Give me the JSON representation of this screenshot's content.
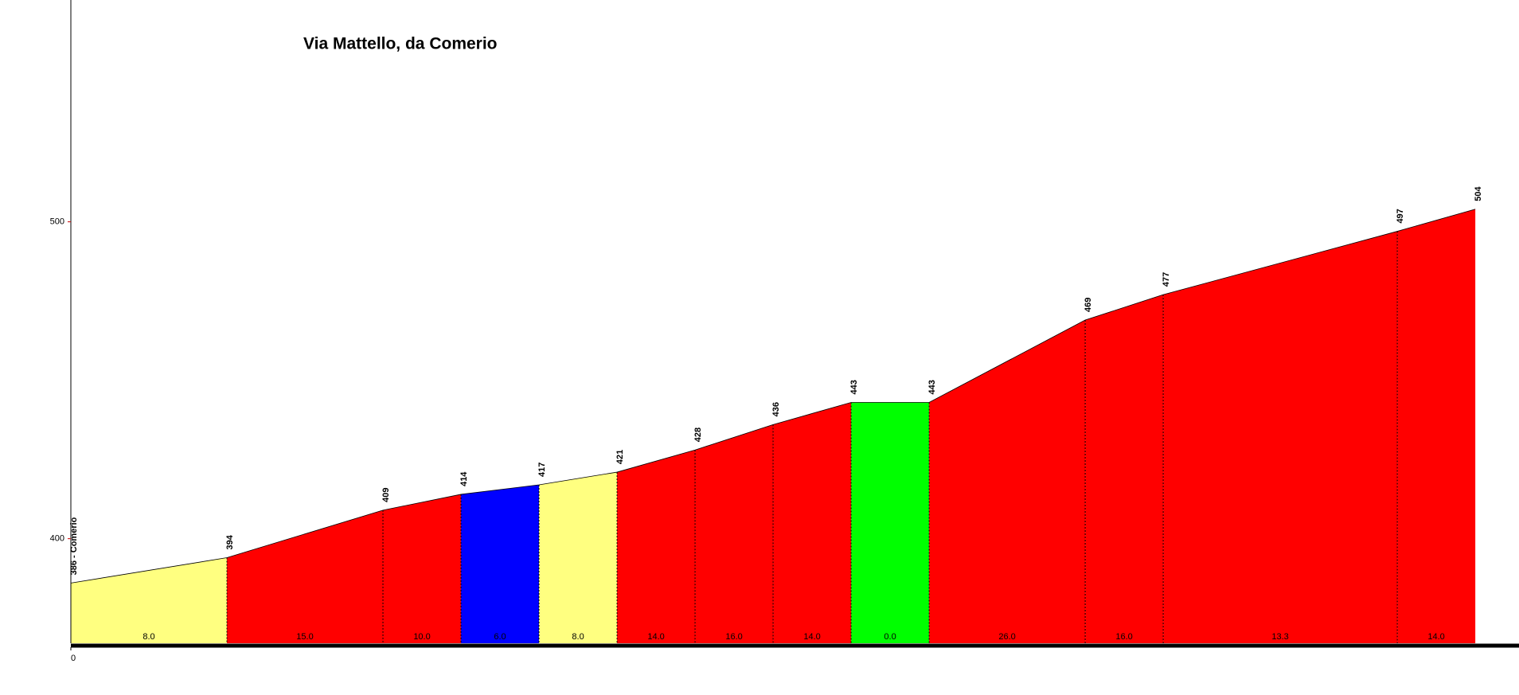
{
  "chart_data": {
    "type": "profile",
    "title": "Via Mattello, da Comerio",
    "x": [
      0,
      100,
      200,
      250,
      300,
      350,
      400,
      450,
      500,
      550,
      650,
      700,
      850,
      900
    ],
    "values": [
      386,
      394,
      409,
      414,
      417,
      421,
      428,
      436,
      443,
      443,
      469,
      477,
      497,
      504
    ],
    "value_labels": [
      "386 - Comerio",
      "394",
      "409",
      "414",
      "417",
      "421",
      "428",
      "436",
      "443",
      "443",
      "469",
      "477",
      "497",
      "504"
    ],
    "segments": {
      "values": [
        8,
        15,
        10,
        6,
        8,
        14,
        16,
        14,
        0,
        26,
        16,
        13.3,
        14
      ],
      "value_labels": [
        "8.0",
        "15.0",
        "10.0",
        "6.0",
        "8.0",
        "14.0",
        "16.0",
        "14.0",
        "0.0",
        "26.0",
        "16.0",
        "13.3",
        "14.0"
      ],
      "colors": [
        "#ffff80",
        "#ff0000",
        "#ff0000",
        "#0000ff",
        "#ffff80",
        "#ff0000",
        "#ff0000",
        "#ff0000",
        "#00ff00",
        "#ff0000",
        "#ff0000",
        "#ff0000",
        "#ff0000"
      ]
    },
    "xlim": [
      0,
      928
    ],
    "xticks": [
      0
    ],
    "ylim": [
      367,
      570
    ],
    "yticks": [
      400,
      500
    ]
  }
}
